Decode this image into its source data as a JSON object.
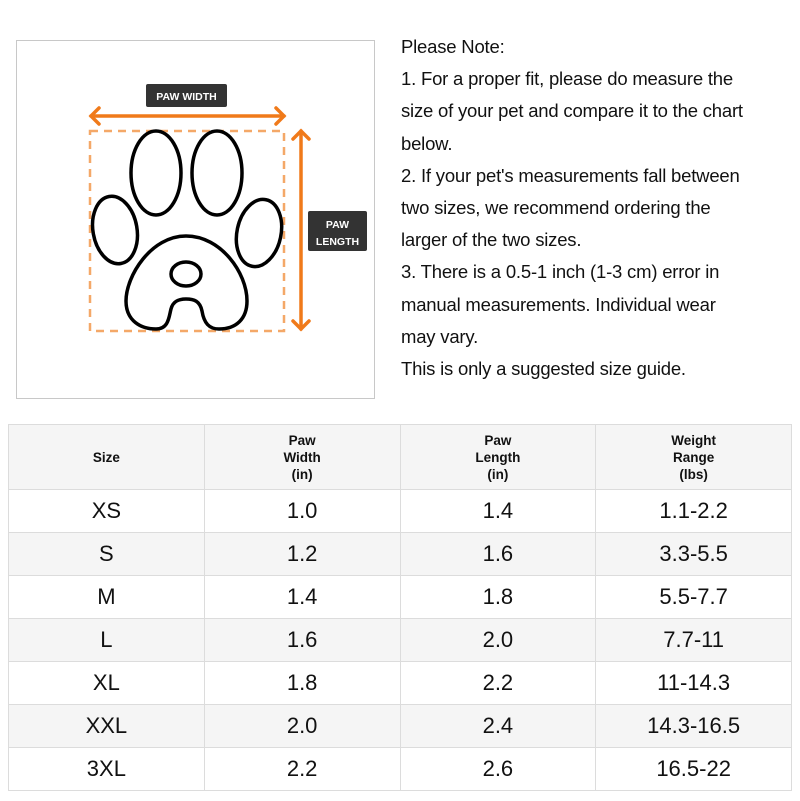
{
  "diagram": {
    "width_label": "PAW WIDTH",
    "length_label_line1": "PAW",
    "length_label_line2": "LENGTH",
    "accent_color": "#f07a1a",
    "label_bg_color": "#333333"
  },
  "notes": {
    "lines": [
      "Please Note:",
      "1. For a proper fit, please do measure the",
      "size of your pet and compare it to the chart",
      "below.",
      "2. If your pet's measurements fall between",
      "two sizes, we recommend ordering the",
      "larger of the two sizes.",
      "3. There is a 0.5-1 inch (1-3 cm) error in",
      "manual measurements. Individual wear",
      "may vary.",
      "This is only a suggested size guide."
    ]
  },
  "table": {
    "headers": [
      [
        "Size"
      ],
      [
        "Paw",
        "Width",
        "(in)"
      ],
      [
        "Paw",
        "Length",
        "(in)"
      ],
      [
        "Weight",
        "Range",
        "(lbs)"
      ]
    ],
    "rows": [
      [
        "XS",
        "1.0",
        "1.4",
        "1.1-2.2"
      ],
      [
        "S",
        "1.2",
        "1.6",
        "3.3-5.5"
      ],
      [
        "M",
        "1.4",
        "1.8",
        "5.5-7.7"
      ],
      [
        "L",
        "1.6",
        "2.0",
        "7.7-11"
      ],
      [
        "XL",
        "1.8",
        "2.2",
        "11-14.3"
      ],
      [
        "XXL",
        "2.0",
        "2.4",
        "14.3-16.5"
      ],
      [
        "3XL",
        "2.2",
        "2.6",
        "16.5-22"
      ]
    ]
  }
}
